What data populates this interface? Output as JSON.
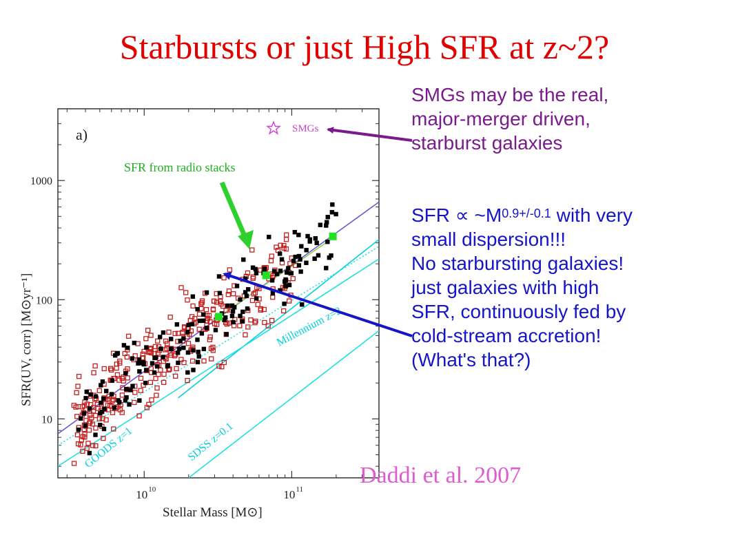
{
  "title": "Starbursts or just High SFR at z~2?",
  "notes": {
    "smg_lines": [
      "SMGs may be the real,",
      "major-merger driven,",
      "starburst galaxies"
    ],
    "sfr_prefix": "SFR ∝ ~M",
    "sfr_exponent": "0.9+/-0.1",
    "sfr_suffix": " with very",
    "lines": [
      "small dispersion!!!",
      "No starbursting galaxies!",
      "just galaxies with high",
      "SFR, continuously fed by",
      "cold-stream accretion!",
      "(What's that?)"
    ]
  },
  "citation": "Daddi et al. 2007",
  "radio_label": "SFR from radio stacks",
  "colors": {
    "title": "#e00000",
    "purple_text": "#7a1a8c",
    "blue_text": "#1515c8",
    "citation": "#e05ad0",
    "radio": "#1fae1f"
  },
  "chart_data": {
    "type": "scatter",
    "panel_label": "a)",
    "xlabel": "Stellar Mass [M⊙]",
    "ylabel": "SFR(UV, corr) [M⊙yr⁻¹]",
    "x_scale": "log",
    "y_scale": "log",
    "xlim": [
      2600000000.0,
      390000000000.0
    ],
    "ylim": [
      3.2,
      4000
    ],
    "x_ticks": [
      {
        "value": 10000000000.0,
        "label": "10",
        "sup": "10"
      },
      {
        "value": 100000000000.0,
        "label": "10",
        "sup": "11"
      }
    ],
    "y_ticks": [
      {
        "value": 10,
        "label": "10"
      },
      {
        "value": 100,
        "label": "100"
      },
      {
        "value": 1000,
        "label": "1000"
      }
    ],
    "legend": {
      "marker": "star",
      "label": "SMGs",
      "position": "top-right"
    },
    "lines": [
      {
        "id": "main-relation",
        "color": "#6a5acd",
        "points": [
          [
            2600000000.0,
            7.5
          ],
          [
            390000000000.0,
            660
          ]
        ]
      },
      {
        "id": "radio-fit",
        "color": "#8fd14f",
        "points": [
          [
            32000000000.0,
            72
          ],
          [
            190000000000.0,
            330
          ]
        ]
      },
      {
        "id": "millennium",
        "color": "#00d0e0",
        "points": [
          [
            17000000000.0,
            15
          ],
          [
            390000000000.0,
            320
          ]
        ]
      },
      {
        "id": "goods-upper",
        "color": "#20e0e0",
        "points": [
          [
            2600000000.0,
            6
          ],
          [
            390000000000.0,
            280
          ]
        ]
      },
      {
        "id": "goods-lower",
        "color": "#20e0e0",
        "points": [
          [
            2600000000.0,
            4
          ],
          [
            390000000000.0,
            220
          ]
        ]
      },
      {
        "id": "sdss",
        "color": "#20e0e0",
        "points": [
          [
            20000000000.0,
            3.2
          ],
          [
            390000000000.0,
            55
          ]
        ]
      }
    ],
    "curve_labels": [
      {
        "text": "Millennium z=2",
        "color": "#00d0e0"
      },
      {
        "text": "GOODS z=1",
        "color": "#00d0e0"
      },
      {
        "text": "SDSS z=0.1",
        "color": "#00d0e0"
      }
    ],
    "radio_stacks": [
      [
        32000000000.0,
        72
      ],
      [
        67000000000.0,
        160
      ],
      [
        190000000000.0,
        340
      ]
    ]
  }
}
